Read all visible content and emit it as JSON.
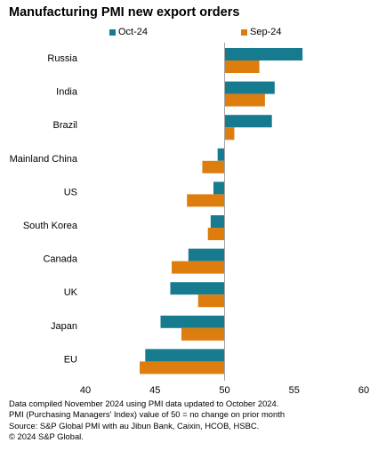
{
  "chart_data": {
    "type": "bar",
    "orientation": "horizontal",
    "title": "Manufacturing PMI new export orders",
    "categories": [
      "Russia",
      "India",
      "Brazil",
      "Mainland China",
      "US",
      "South Korea",
      "Canada",
      "UK",
      "Japan",
      "EU"
    ],
    "series": [
      {
        "name": "Oct-24",
        "color": "#177b8f",
        "values": [
          55.6,
          53.6,
          53.4,
          49.5,
          49.2,
          49.0,
          47.4,
          46.1,
          45.4,
          44.3
        ]
      },
      {
        "name": "Sep-24",
        "color": "#dd7d0e",
        "values": [
          52.5,
          52.9,
          50.7,
          48.4,
          47.3,
          48.8,
          46.2,
          48.1,
          46.9,
          43.9
        ]
      }
    ],
    "baseline": 50,
    "xlim": [
      40,
      60
    ],
    "xticks": [
      40,
      45,
      50,
      55,
      60
    ],
    "legend_position": "top",
    "grid": false
  },
  "footer": {
    "line1": "Data compiled November 2024 using PMI data updated to October 2024.",
    "line2": "PMI (Purchasing Managers' Index) value of 50 = no change on prior month",
    "line3": "Source: S&P Global PMI with au Jibun Bank, Caixin, HCOB, HSBC.",
    "line4": "© 2024 S&P Global."
  }
}
